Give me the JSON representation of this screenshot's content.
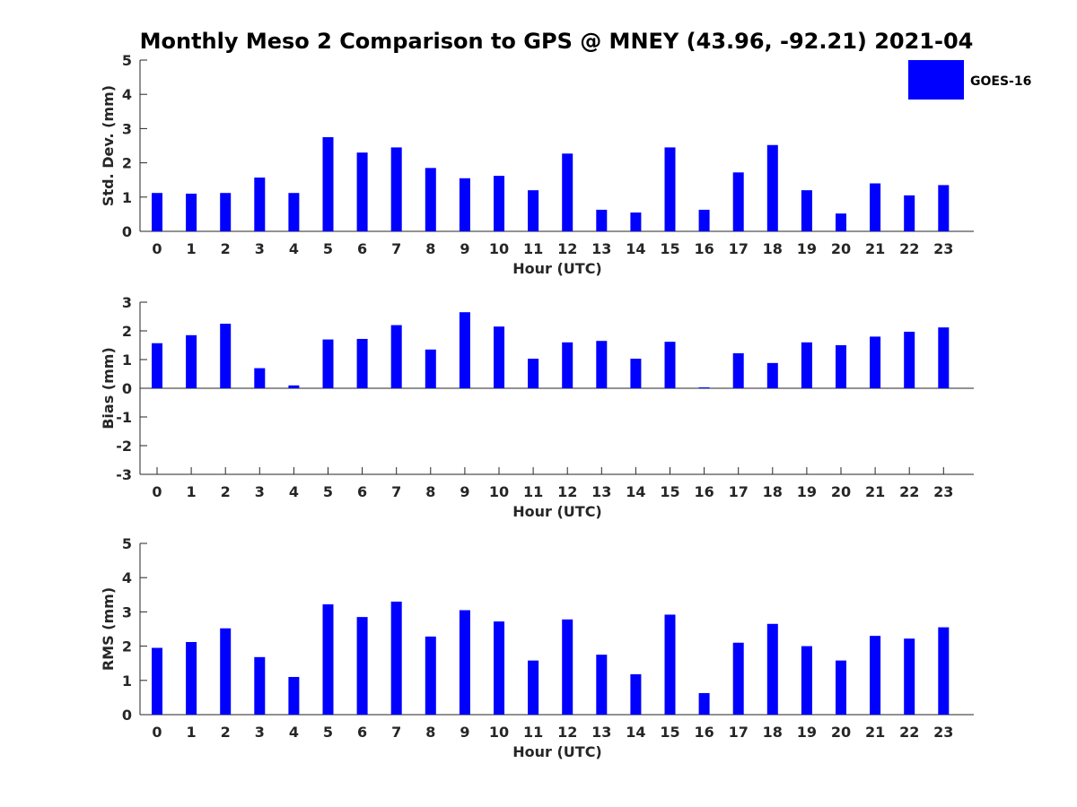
{
  "title": "Monthly Meso 2 Comparison to GPS @ MNEY (43.96, -92.21) 2021-04",
  "colors": {
    "bar": "#0000ff",
    "axis": "#262626"
  },
  "legend": {
    "label": "GOES-16",
    "placement": "top-right"
  },
  "chart_data": [
    {
      "type": "bar",
      "xlabel": "Hour (UTC)",
      "ylabel": "Std. Dev. (mm)",
      "ylim": [
        0,
        5
      ],
      "yticks": [
        0,
        1,
        2,
        3,
        4,
        5
      ],
      "categories": [
        "0",
        "1",
        "2",
        "3",
        "4",
        "5",
        "6",
        "7",
        "8",
        "9",
        "10",
        "11",
        "12",
        "13",
        "14",
        "15",
        "16",
        "17",
        "18",
        "19",
        "20",
        "21",
        "22",
        "23"
      ],
      "series": [
        {
          "name": "GOES-16",
          "values": [
            1.12,
            1.1,
            1.12,
            1.57,
            1.12,
            2.75,
            2.3,
            2.45,
            1.85,
            1.55,
            1.62,
            1.2,
            2.27,
            0.63,
            0.55,
            2.45,
            0.63,
            1.72,
            2.52,
            1.2,
            0.52,
            1.4,
            1.05,
            1.35
          ]
        }
      ]
    },
    {
      "type": "bar",
      "xlabel": "Hour (UTC)",
      "ylabel": "Bias (mm)",
      "ylim": [
        -3,
        3
      ],
      "yticks": [
        -3,
        -2,
        -1,
        0,
        1,
        2,
        3
      ],
      "categories": [
        "0",
        "1",
        "2",
        "3",
        "4",
        "5",
        "6",
        "7",
        "8",
        "9",
        "10",
        "11",
        "12",
        "13",
        "14",
        "15",
        "16",
        "17",
        "18",
        "19",
        "20",
        "21",
        "22",
        "23"
      ],
      "series": [
        {
          "name": "GOES-16",
          "values": [
            1.57,
            1.85,
            2.25,
            0.7,
            0.1,
            1.7,
            1.72,
            2.2,
            1.35,
            2.65,
            2.15,
            1.03,
            1.6,
            1.65,
            1.03,
            1.62,
            0.03,
            1.22,
            0.88,
            1.6,
            1.5,
            1.8,
            1.97,
            2.12
          ]
        }
      ]
    },
    {
      "type": "bar",
      "xlabel": "Hour (UTC)",
      "ylabel": "RMS (mm)",
      "ylim": [
        0,
        5
      ],
      "yticks": [
        0,
        1,
        2,
        3,
        4,
        5
      ],
      "categories": [
        "0",
        "1",
        "2",
        "3",
        "4",
        "5",
        "6",
        "7",
        "8",
        "9",
        "10",
        "11",
        "12",
        "13",
        "14",
        "15",
        "16",
        "17",
        "18",
        "19",
        "20",
        "21",
        "22",
        "23"
      ],
      "series": [
        {
          "name": "GOES-16",
          "values": [
            1.95,
            2.12,
            2.52,
            1.68,
            1.1,
            3.22,
            2.85,
            3.3,
            2.28,
            3.05,
            2.72,
            1.58,
            2.78,
            1.75,
            1.18,
            2.92,
            0.63,
            2.1,
            2.65,
            2.0,
            1.58,
            2.3,
            2.22,
            2.55
          ]
        }
      ]
    }
  ]
}
